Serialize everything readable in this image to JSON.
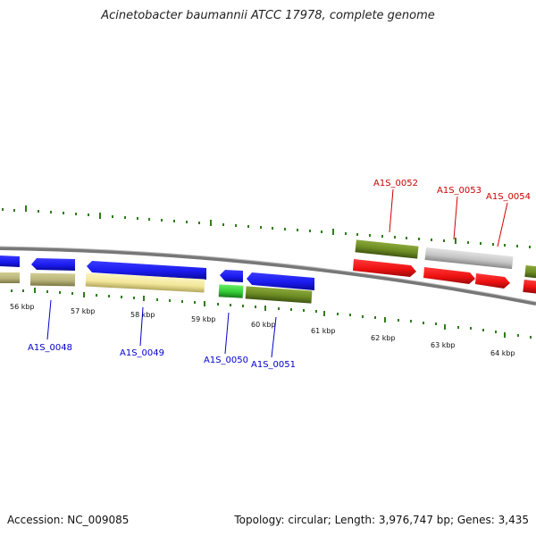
{
  "title": "Acinetobacter baumannii ATCC 17978, complete genome",
  "footer": {
    "accession": "Accession: NC_009085",
    "summary": "Topology: circular; Length: 3,976,747 bp; Genes: 3,435"
  },
  "scale": {
    "bottom_labels": [
      "56 kbp",
      "57 kbp",
      "58 kbp",
      "59 kbp",
      "60 kbp",
      "61 kbp",
      "62 kbp",
      "63 kbp",
      "64 kbp"
    ]
  },
  "genes_bottom": [
    {
      "id": "A1S_0048",
      "color": "#0000cc"
    },
    {
      "id": "A1S_0049",
      "color": "#0000cc"
    },
    {
      "id": "A1S_0050",
      "color": "#0000cc"
    },
    {
      "id": "A1S_0051",
      "color": "#0000cc"
    }
  ],
  "genes_top": [
    {
      "id": "A1S_0052",
      "color": "#cc0000"
    },
    {
      "id": "A1S_0053",
      "color": "#cc0000"
    },
    {
      "id": "A1S_0054",
      "color": "#cc0000"
    }
  ],
  "colors": {
    "forward_blue": "#1a1aee",
    "reverse_red": "#ee1111",
    "olive": "#6b8a22",
    "khaki": "#b9b47a",
    "pale_yellow": "#f3e79a",
    "green": "#33cc33",
    "grey": "#c4c4c4",
    "tick_green": "#2e7d1a",
    "backbone": "#777777"
  }
}
